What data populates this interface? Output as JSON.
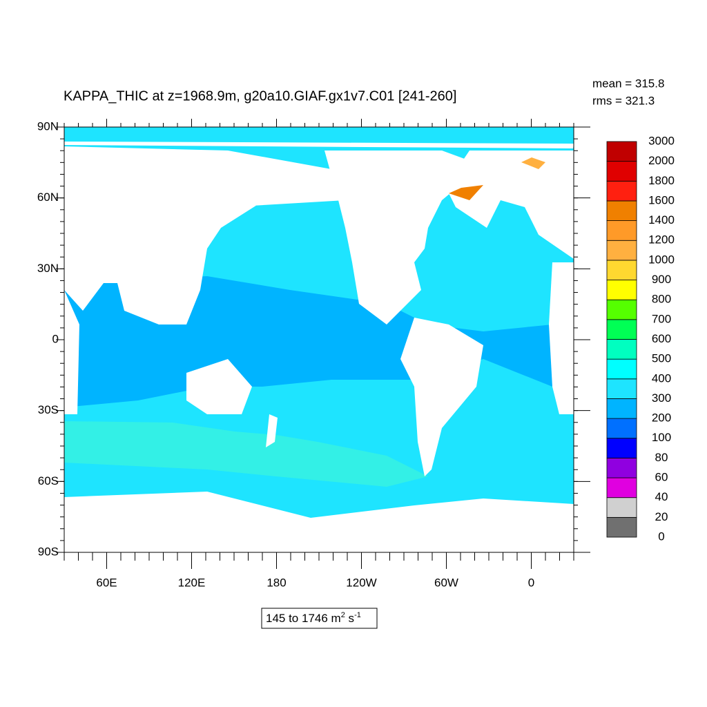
{
  "title": "KAPPA_THIC at z=1968.9m, g20a10.GIAF.gx1v7.C01 [241-260]",
  "stats": [
    "mean = 315.8",
    "rms = 321.3"
  ],
  "lat_labels": [
    "90N",
    "60N",
    "30N",
    "0",
    "30S",
    "60S",
    "90S"
  ],
  "lon_labels": [
    "60E",
    "120E",
    "180",
    "120W",
    "60W",
    "0"
  ],
  "range_label": {
    "text": "145 to 1746 m",
    "sup1": "2",
    "mid": " s",
    "sup2": "-1"
  },
  "colorbar": {
    "levels": [
      0,
      20,
      40,
      60,
      80,
      100,
      200,
      300,
      400,
      500,
      600,
      700,
      800,
      900,
      1000,
      1200,
      1400,
      1600,
      1800,
      2000,
      3000
    ],
    "colors": [
      "#707070",
      "#d0d0d0",
      "#e000e0",
      "#9000e0",
      "#0000ff",
      "#0070ff",
      "#00b4ff",
      "#1ee4ff",
      "#00ffff",
      "#00ffc0",
      "#00ff55",
      "#55ff00",
      "#ffff00",
      "#ffd830",
      "#ffb040",
      "#ff9a28",
      "#f08000",
      "#ff2010",
      "#e00000",
      "#c00000"
    ]
  }
}
